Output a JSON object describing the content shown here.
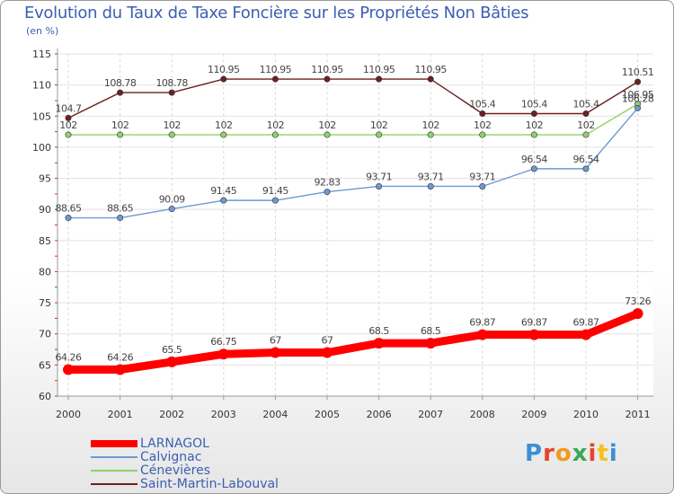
{
  "chart_data": {
    "type": "line",
    "title": "Evolution du Taux de Taxe Foncière sur les Propriétés Non Bâties",
    "ylabel": "(en %)",
    "xlabel": "",
    "ylim": [
      60,
      115
    ],
    "yticks": [
      60,
      65,
      70,
      75,
      80,
      85,
      90,
      95,
      100,
      105,
      110,
      115
    ],
    "categories": [
      "2000",
      "2001",
      "2002",
      "2003",
      "2004",
      "2005",
      "2006",
      "2007",
      "2008",
      "2009",
      "2010",
      "2011"
    ],
    "series": [
      {
        "name": "Saint-Martin-Labouval",
        "color": "#6e1f1f",
        "values": [
          104.7,
          108.78,
          108.78,
          110.95,
          110.95,
          110.95,
          110.95,
          110.95,
          105.4,
          105.4,
          105.4,
          110.51
        ],
        "labels": [
          "104.7",
          "108.78",
          "108.78",
          "110.95",
          "110.95",
          "110.95",
          "110.95",
          "110.95",
          "105.4",
          "105.4",
          "105.4",
          "110.51"
        ]
      },
      {
        "name": "Cénevières",
        "color": "#8fd16a",
        "values": [
          102,
          102,
          102,
          102,
          102,
          102,
          102,
          102,
          102,
          102,
          102,
          106.95
        ],
        "labels": [
          "102",
          "102",
          "102",
          "102",
          "102",
          "102",
          "102",
          "102",
          "102",
          "102",
          "102",
          "106.95"
        ]
      },
      {
        "name": "Calvignac",
        "color": "#6b9bd1",
        "values": [
          88.65,
          88.65,
          90.09,
          91.45,
          91.45,
          92.83,
          93.71,
          93.71,
          93.71,
          96.54,
          96.54,
          106.28
        ],
        "labels": [
          "88.65",
          "88.65",
          "90.09",
          "91.45",
          "91.45",
          "92.83",
          "93.71",
          "93.71",
          "93.71",
          "96.54",
          "96.54",
          "106.28"
        ]
      },
      {
        "name": "LARNAGOL",
        "color": "#ff0000",
        "values": [
          64.26,
          64.26,
          65.5,
          66.75,
          67,
          67,
          68.5,
          68.5,
          69.87,
          69.87,
          69.87,
          73.26
        ],
        "labels": [
          "64.26",
          "64.26",
          "65.5",
          "66.75",
          "67",
          "67",
          "68.5",
          "68.5",
          "69.87",
          "69.87",
          "69.87",
          "73.26"
        ]
      }
    ],
    "legend": [
      "LARNAGOL",
      "Calvignac",
      "Cénevières",
      "Saint-Martin-Labouval"
    ],
    "grid": true
  },
  "brand": {
    "logo_text": "Proxiti"
  }
}
